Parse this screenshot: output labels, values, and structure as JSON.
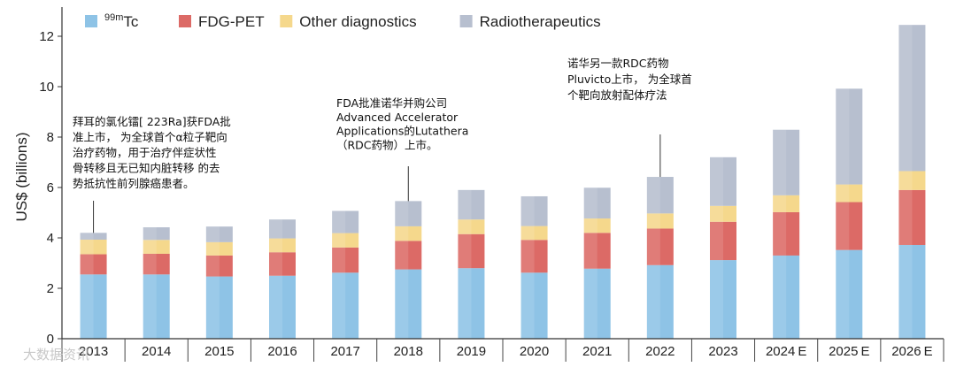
{
  "chart_data": {
    "type": "bar",
    "stacked": true,
    "title": "",
    "xlabel": "",
    "ylabel": "US$ (billions)",
    "ylim": [
      0,
      13
    ],
    "yticks": [
      0,
      2,
      4,
      6,
      8,
      10,
      12
    ],
    "legend_position": "top-left",
    "categories": [
      "2013",
      "2014",
      "2015",
      "2016",
      "2017",
      "2018",
      "2019",
      "2020",
      "2021",
      "2022",
      "2023",
      "2024",
      "2025",
      "2026"
    ],
    "category_suffix": [
      "",
      "",
      "",
      "",
      "",
      "",
      "",
      "",
      "",
      "",
      "",
      "E",
      "E",
      "E"
    ],
    "series": [
      {
        "name": "99mTc",
        "name_base": "Tc",
        "name_sup": "99m",
        "color": "#8ec3e6",
        "values": [
          2.55,
          2.55,
          2.47,
          2.5,
          2.62,
          2.75,
          2.8,
          2.62,
          2.78,
          2.92,
          3.12,
          3.3,
          3.52,
          3.72
        ]
      },
      {
        "name": "FDG-PET",
        "color": "#dc6a66",
        "values": [
          0.8,
          0.82,
          0.83,
          0.93,
          1.0,
          1.13,
          1.35,
          1.3,
          1.42,
          1.45,
          1.52,
          1.72,
          1.9,
          2.18
        ]
      },
      {
        "name": "Other diagnostics",
        "color": "#f5d88c",
        "values": [
          0.58,
          0.55,
          0.53,
          0.55,
          0.57,
          0.58,
          0.58,
          0.55,
          0.57,
          0.6,
          0.63,
          0.67,
          0.7,
          0.75
        ]
      },
      {
        "name": "Radiotherapeutics",
        "color": "#b7bfcf",
        "values": [
          0.27,
          0.5,
          0.62,
          0.75,
          0.88,
          1.0,
          1.17,
          1.18,
          1.22,
          1.45,
          1.93,
          2.6,
          3.8,
          5.8
        ]
      }
    ],
    "annotations": [
      {
        "category": "2013",
        "lines": [
          "拜耳的氯化镭[ 223Ra]获FDA批",
          "准上市， 为全球首个α粒子靶向",
          "治疗药物，用于治疗伴症状性",
          "骨转移且无已知内脏转移 的去",
          "势抵抗性前列腺癌患者。"
        ]
      },
      {
        "category": "2018",
        "lines": [
          "FDA批准诺华并购公司",
          "Advanced Accelerator",
          "Applications的Lutathera",
          "（RDC药物）上市。"
        ]
      },
      {
        "category": "2022",
        "lines": [
          "诺华另一款RDC药物",
          "Pluvicto上市， 为全球首",
          "个靶向放射配体疗法"
        ]
      }
    ]
  },
  "watermark": "大数据资讯"
}
